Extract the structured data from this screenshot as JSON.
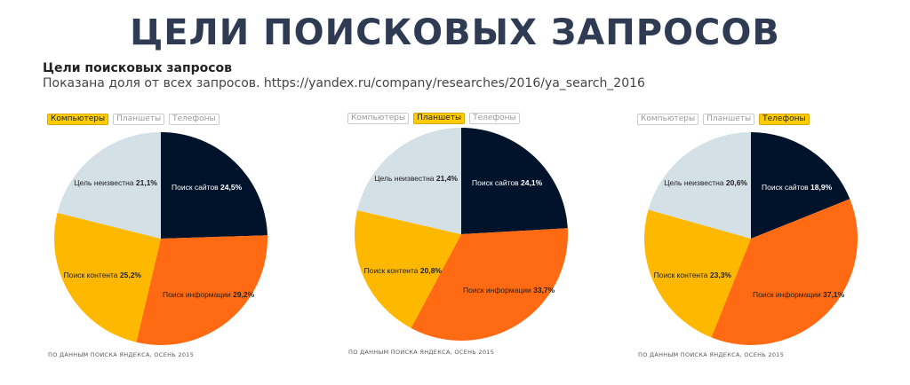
{
  "header": {
    "title": "ЦЕЛИ ПОИСКОВЫХ ЗАПРОСОВ",
    "subtitle": "Цели поисковых запросов",
    "description": "Показана доля от всех запросов. https://yandex.ru/company/researches/2016/ya_search_2016"
  },
  "toggles": [
    "Компьютеры",
    "Планшеты",
    "Телефоны"
  ],
  "footnote": "ПО ДАННЫМ ПОИСКА ЯНДЕКСА, ОСЕНЬ 2015",
  "colors": {
    "Поиск сайтов": "#00132a",
    "Поиск информации": "#ff6a13",
    "Поиск контента": "#ffb800",
    "Цель неизвестна": "#d3e0e6",
    "toggle_active": "#ffcc00"
  },
  "chart_data": [
    {
      "type": "pie",
      "active_toggle": "Компьютеры",
      "categories": [
        "Поиск сайтов",
        "Поиск информации",
        "Поиск контента",
        "Цель неизвестна"
      ],
      "values": [
        24.5,
        29.2,
        25.2,
        21.1
      ],
      "labels": [
        "24,5%",
        "29,2%",
        "25,2%",
        "21,1%"
      ]
    },
    {
      "type": "pie",
      "active_toggle": "Планшеты",
      "categories": [
        "Поиск сайтов",
        "Поиск информации",
        "Поиск контента",
        "Цель неизвестна"
      ],
      "values": [
        24.1,
        33.7,
        20.8,
        21.4
      ],
      "labels": [
        "24,1%",
        "33,7%",
        "20,8%",
        "21,4%"
      ]
    },
    {
      "type": "pie",
      "active_toggle": "Телефоны",
      "categories": [
        "Поиск сайтов",
        "Поиск информации",
        "Поиск контента",
        "Цель неизвестна"
      ],
      "values": [
        18.9,
        37.1,
        23.3,
        20.6
      ],
      "labels": [
        "18,9%",
        "37,1%",
        "23,3%",
        "20,6%"
      ]
    }
  ]
}
